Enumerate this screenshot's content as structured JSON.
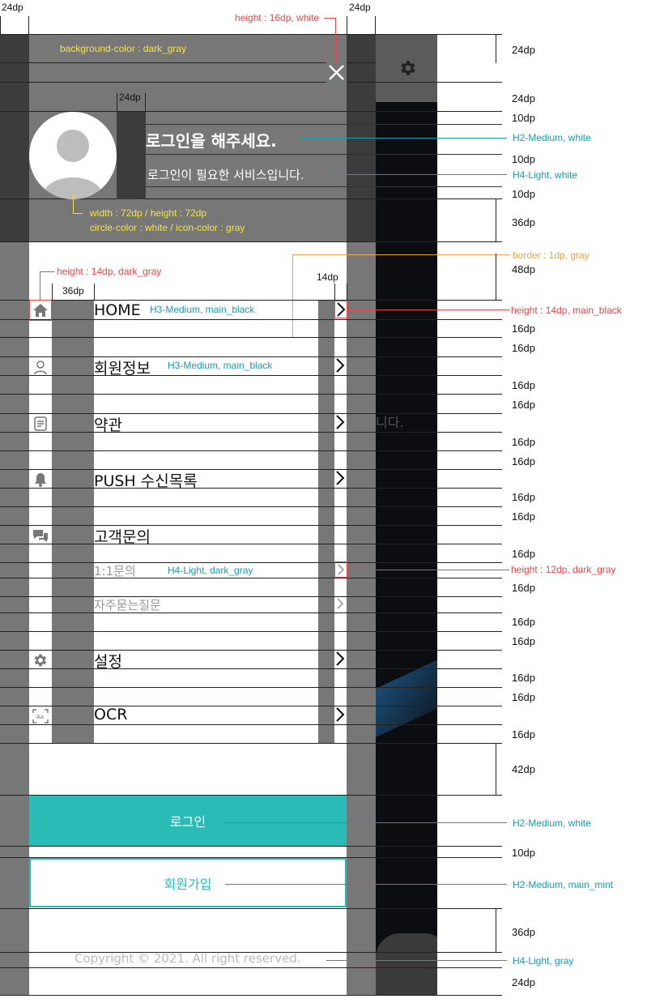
{
  "top_dims": {
    "left": "24dp",
    "right": "24dp",
    "mid": "24dp"
  },
  "header": {
    "bg_label": "background-color : dark_gray",
    "close_spec": "height : 16dp, white",
    "login_title": "로그인을 해주세요.",
    "login_subtitle": "로그인이 필요한 서비스입니다.",
    "avatar_spec_1": "width : 72dp / height : 72dp",
    "avatar_spec_2": "circle-color : white / icon-color : gray",
    "colors": {
      "dark_gray": "#777777",
      "white": "#ffffff"
    }
  },
  "menu_specs": {
    "icon_height": "height : 14dp, dark_gray",
    "col_36": "36dp",
    "col_14": "14dp",
    "border": "border : 1dp, gray",
    "arrow_height": "height : 14dp, main_black",
    "sub_arrow_height": "height : 12dp, dark_gray"
  },
  "menu": {
    "items": [
      {
        "label": "HOME",
        "icon": "home-icon",
        "spec": "H3-Medium, main_black"
      },
      {
        "label": "회원정보",
        "icon": "user-icon",
        "spec": "H3-Medium, main_black"
      },
      {
        "label": "약관",
        "icon": "document-icon",
        "spec": ""
      },
      {
        "label": "PUSH 수신목록",
        "icon": "bell-icon",
        "spec": ""
      },
      {
        "label": "고객문의",
        "icon": "chat-icon",
        "spec": ""
      },
      {
        "label": "1:1문의",
        "icon": "",
        "spec": "H4-Light, dark_gray"
      },
      {
        "label": "자주묻는질문",
        "icon": "",
        "spec": ""
      },
      {
        "label": "설정",
        "icon": "gear-icon",
        "spec": ""
      },
      {
        "label": "OCR",
        "icon": "scan-icon",
        "spec": ""
      }
    ]
  },
  "buttons": {
    "login": "로그인",
    "login_spec": "H2-Medium, white",
    "signup": "회원가입",
    "signup_spec": "H2-Medium, main_mint",
    "colors": {
      "main_mint": "#2bbbb6"
    }
  },
  "footer": {
    "copyright": "Copyright © 2021. All right reserved.",
    "spec": "H4-Light, gray"
  },
  "right_specs": {
    "title_spec": "H2-Medium, white",
    "subtitle_spec": "H4-Light, white"
  },
  "background_text": "니다.",
  "dp_values": [
    "24dp",
    "24dp",
    "10dp",
    "10dp",
    "10dp",
    "36dp",
    "48dp",
    "16dp",
    "16dp",
    "16dp",
    "16dp",
    "16dp",
    "16dp",
    "16dp",
    "16dp",
    "16dp",
    "16dp",
    "16dp",
    "16dp",
    "16dp",
    "16dp",
    "16dp",
    "42dp",
    "10dp",
    "36dp",
    "24dp"
  ]
}
